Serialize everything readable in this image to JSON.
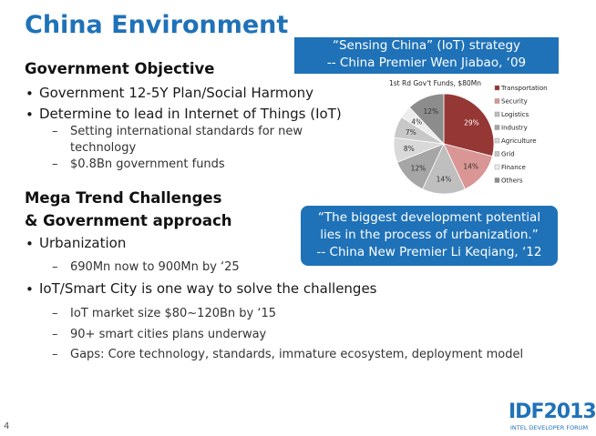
{
  "title": "China Environment",
  "callouts": [
    {
      "lines": [
        "“Sensing China” (IoT) strategy",
        "-- China Premier Wen Jiabao, ‘09"
      ]
    },
    {
      "lines": [
        "“The biggest development potential",
        "lies in the process of urbanization.”",
        "-- China New Premier Li Keqiang, ‘12"
      ]
    }
  ],
  "sections": [
    {
      "heading": [
        "Government Objective"
      ],
      "items": [
        {
          "text": "Government 12-5Y Plan/Social Harmony",
          "subitems": []
        },
        {
          "text": "Determine to lead in Internet of Things (IoT)",
          "subitems": [
            "Setting international standards for new technology",
            "$0.8Bn government funds"
          ]
        }
      ]
    },
    {
      "heading": [
        "Mega Trend Challenges",
        "& Government approach"
      ],
      "items": [
        {
          "text": "Urbanization",
          "subitems": [
            "690Mn now to 900Mn by ‘25"
          ]
        },
        {
          "text": "IoT/Smart City is one way to solve the challenges",
          "subitems": [
            "IoT market size $80~120Bn by ‘15",
            "90+ smart cities plans underway",
            "Gaps: Core technology, standards, immature ecosystem, deployment model"
          ]
        }
      ]
    }
  ],
  "footer": {
    "logo": "IDF2013",
    "tagline": "INTEL DEVELOPER FORUM",
    "page": "4"
  },
  "chart_data": {
    "type": "pie",
    "title": "1st Rd Gov't Funds, $80Mn",
    "categories": [
      "Transportation",
      "Security",
      "Logistics",
      "Industry",
      "Agriculture",
      "Grid",
      "Finance",
      "Others"
    ],
    "values": [
      29,
      14,
      14,
      12,
      8,
      7,
      4,
      12
    ],
    "value_labels": [
      "29%",
      "14%",
      "14%",
      "12%",
      "8%",
      "7%",
      "4%",
      "12%"
    ],
    "colors": [
      "#953735",
      "#d99694",
      "#bfbfbf",
      "#a6a6a6",
      "#d9d9d9",
      "#c8c8c8",
      "#ececec",
      "#8c8c8c"
    ]
  }
}
